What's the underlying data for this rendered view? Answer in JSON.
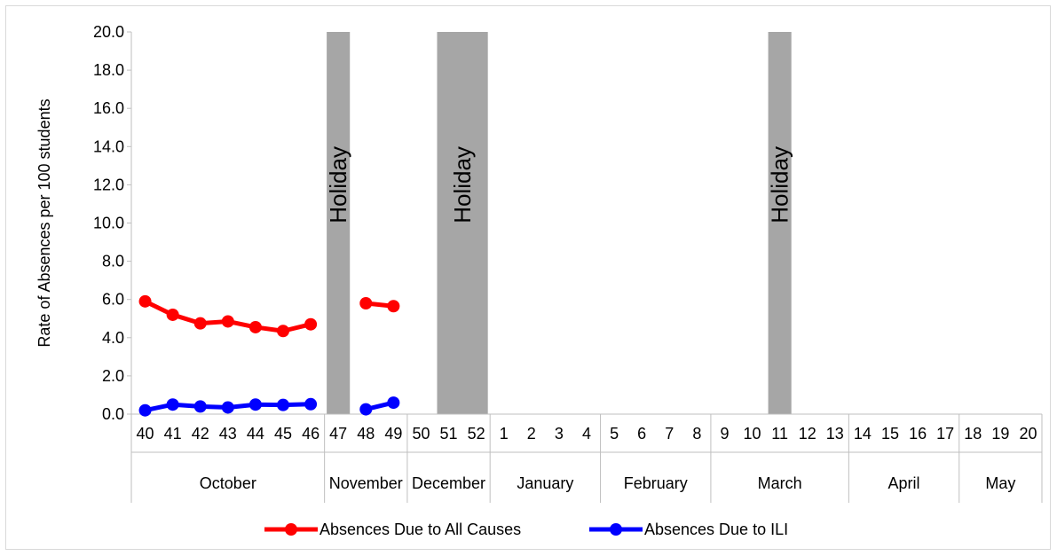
{
  "chart_data": {
    "type": "line",
    "title": "",
    "ylabel": "Rate of Absences per 100 students",
    "xlabel": "",
    "ylim": [
      0,
      20
    ],
    "yticks": [
      "0.0",
      "2.0",
      "4.0",
      "6.0",
      "8.0",
      "10.0",
      "12.0",
      "14.0",
      "16.0",
      "18.0",
      "20.0"
    ],
    "ytick_values": [
      0,
      2,
      4,
      6,
      8,
      10,
      12,
      14,
      16,
      18,
      20
    ],
    "categories": [
      "40",
      "41",
      "42",
      "43",
      "44",
      "45",
      "46",
      "47",
      "48",
      "49",
      "50",
      "51",
      "52",
      "1",
      "2",
      "3",
      "4",
      "5",
      "6",
      "7",
      "8",
      "9",
      "10",
      "11",
      "12",
      "13",
      "14",
      "15",
      "16",
      "17",
      "18",
      "19",
      "20"
    ],
    "months": [
      {
        "label": "October",
        "span": 7
      },
      {
        "label": "November",
        "span": 3
      },
      {
        "label": "December",
        "span": 3
      },
      {
        "label": "January",
        "span": 4
      },
      {
        "label": "February",
        "span": 4
      },
      {
        "label": "March",
        "span": 5
      },
      {
        "label": "April",
        "span": 4
      },
      {
        "label": "May",
        "span": 3
      }
    ],
    "holidays": [
      {
        "week": "47",
        "label": "Holiday"
      },
      {
        "week": "51",
        "span_weeks": [
          "51",
          "52"
        ],
        "label": "Holiday"
      },
      {
        "week": "11",
        "label": "Holiday"
      }
    ],
    "series": [
      {
        "name": "Absences Due to All Causes",
        "color": "#ff0000",
        "values": [
          5.9,
          5.2,
          4.75,
          4.85,
          4.55,
          4.35,
          4.7,
          null,
          5.8,
          5.65,
          null,
          null,
          null,
          null,
          null,
          null,
          null,
          null,
          null,
          null,
          null,
          null,
          null,
          null,
          null,
          null,
          null,
          null,
          null,
          null,
          null,
          null,
          null
        ]
      },
      {
        "name": "Absences Due to ILI",
        "color": "#0000ff",
        "values": [
          0.2,
          0.5,
          0.4,
          0.35,
          0.5,
          0.48,
          0.52,
          null,
          0.25,
          0.6,
          null,
          null,
          null,
          null,
          null,
          null,
          null,
          null,
          null,
          null,
          null,
          null,
          null,
          null,
          null,
          null,
          null,
          null,
          null,
          null,
          null,
          null,
          null
        ]
      }
    ],
    "holiday_color": "#a6a6a6",
    "legend_position": "bottom",
    "grid": false
  }
}
